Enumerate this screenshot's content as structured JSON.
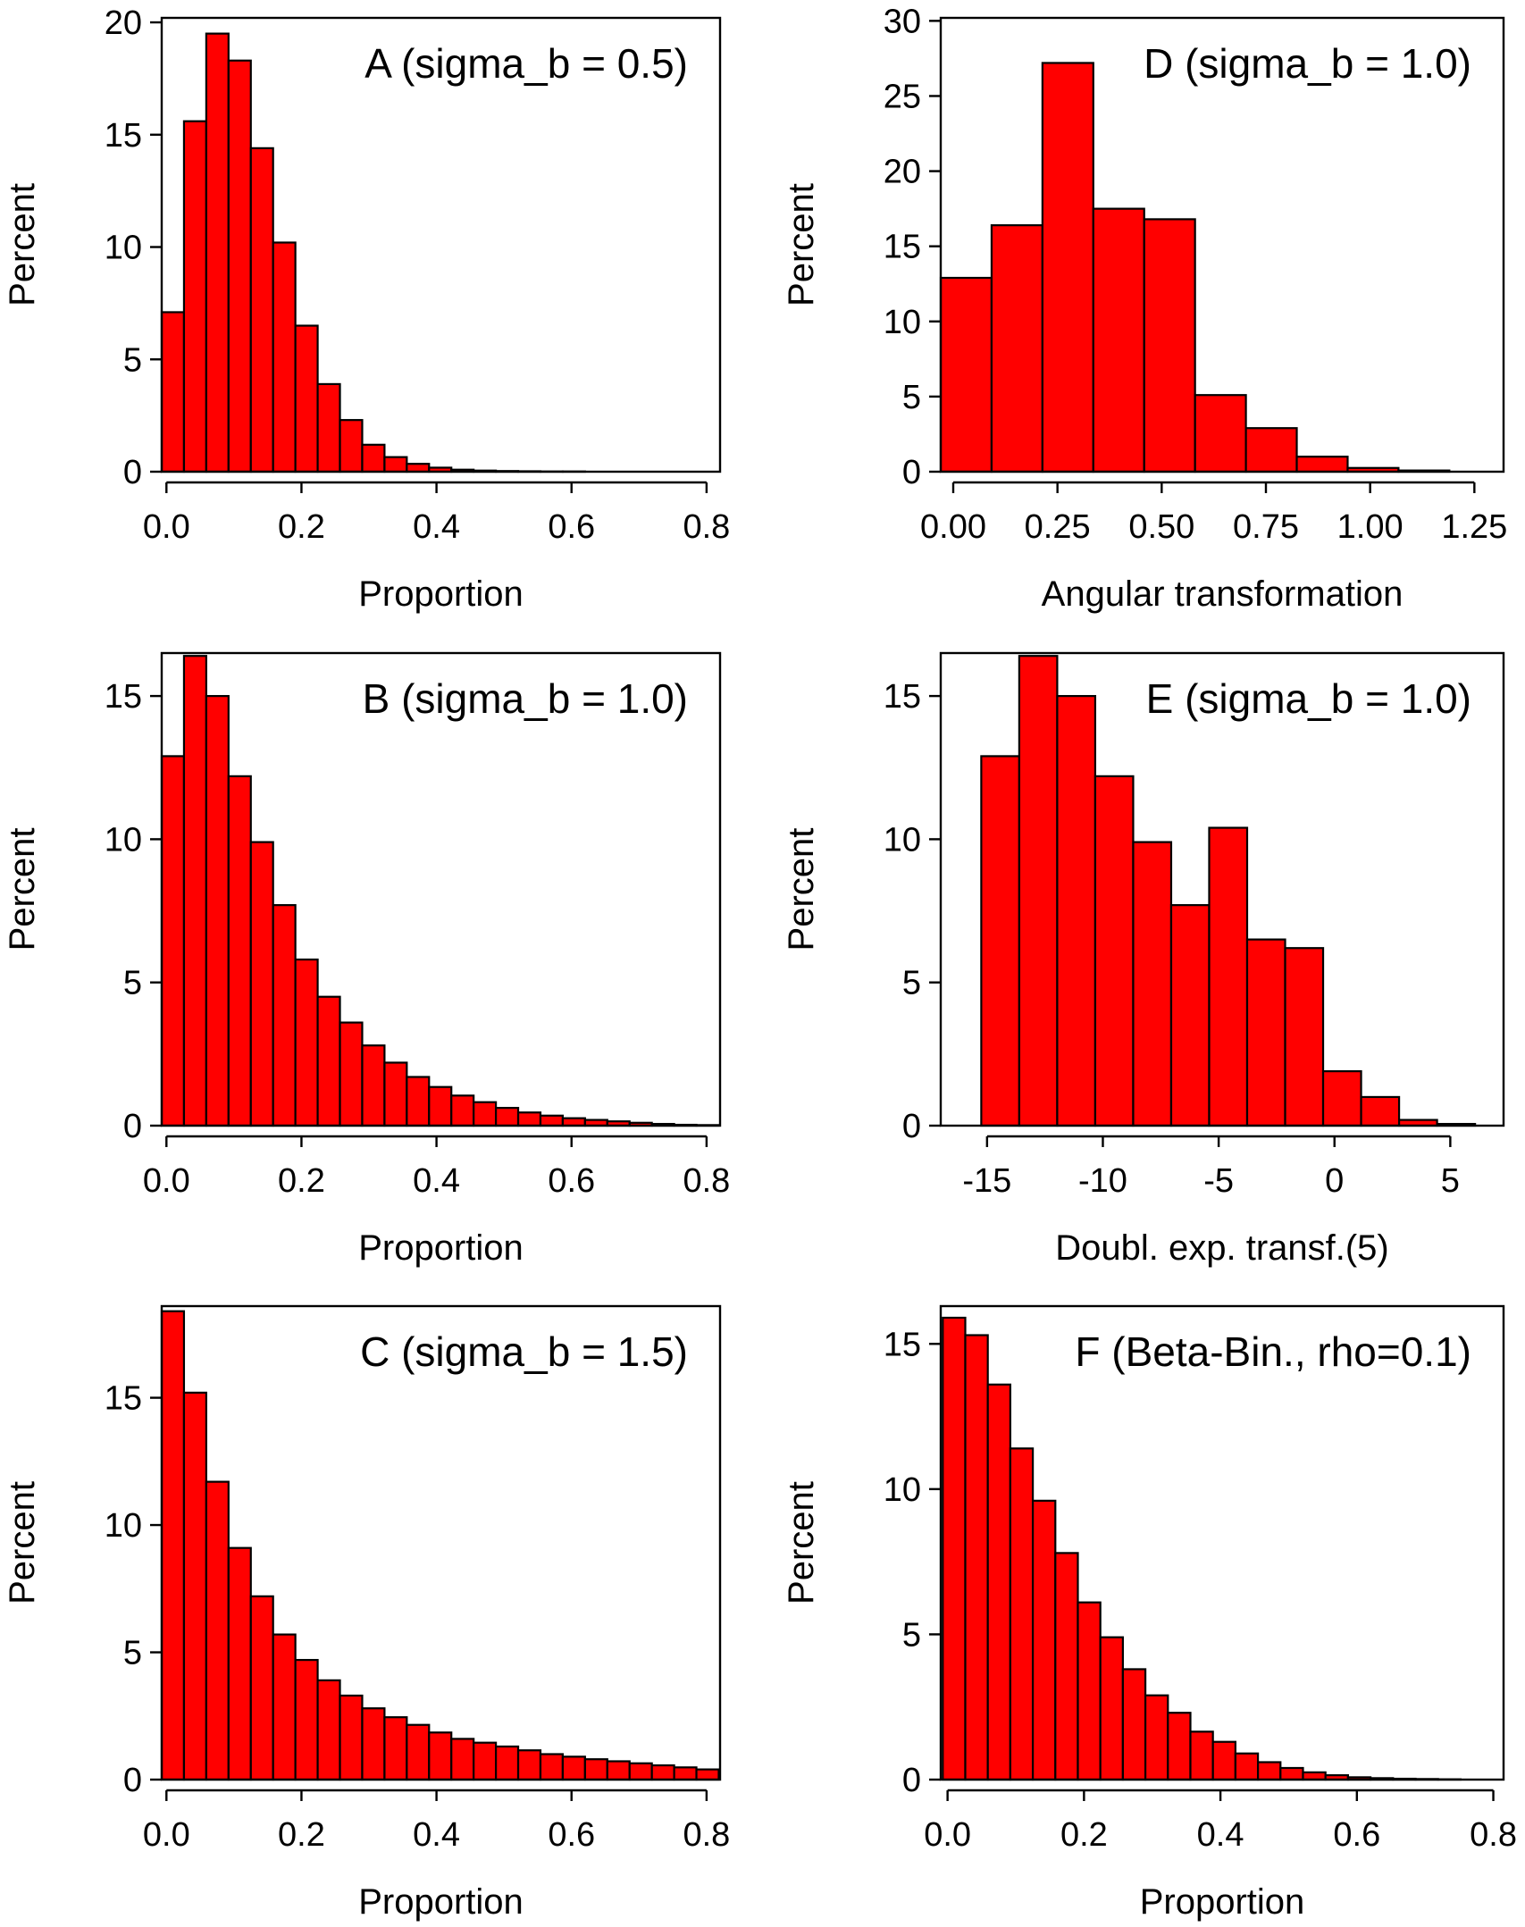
{
  "colors": {
    "bar_fill": "#ff0000",
    "bar_edge": "#000000",
    "frame": "#000000",
    "background": "#ffffff"
  },
  "chart_data": [
    {
      "id": "A",
      "type": "bar",
      "title": "A (sigma_b = 0.5)",
      "xlabel": "Proportion",
      "ylabel": "Percent",
      "xlim": [
        -0.007,
        0.82
      ],
      "ylim": [
        0,
        20.2
      ],
      "xticks": [
        0.0,
        0.2,
        0.4,
        0.6,
        0.8
      ],
      "xtick_labels": [
        "0.0",
        "0.2",
        "0.4",
        "0.6",
        "0.8"
      ],
      "yticks": [
        0,
        5,
        10,
        15,
        20
      ],
      "ytick_labels": [
        "0",
        "5",
        "10",
        "15",
        "20"
      ],
      "bin_start": -0.007,
      "bin_width": 0.033,
      "values": [
        7.1,
        15.6,
        19.5,
        18.3,
        14.4,
        10.2,
        6.5,
        3.9,
        2.3,
        1.2,
        0.65,
        0.35,
        0.18,
        0.09,
        0.05,
        0.03,
        0.02,
        0.01,
        0.01
      ]
    },
    {
      "id": "D",
      "type": "bar",
      "title": "D (sigma_b = 1.0)",
      "xlabel": "Angular transformation",
      "ylabel": "Percent",
      "xlim": [
        -0.03,
        1.32
      ],
      "ylim": [
        0,
        30.2
      ],
      "xticks": [
        0.0,
        0.25,
        0.5,
        0.75,
        1.0,
        1.25
      ],
      "xtick_labels": [
        "0.00",
        "0.25",
        "0.50",
        "0.75",
        "1.00",
        "1.25"
      ],
      "yticks": [
        0,
        5,
        10,
        15,
        20,
        25,
        30
      ],
      "ytick_labels": [
        "0",
        "5",
        "10",
        "15",
        "20",
        "25",
        "30"
      ],
      "bin_start": -0.03,
      "bin_width": 0.122,
      "values": [
        12.9,
        16.4,
        27.2,
        17.5,
        16.8,
        5.1,
        2.9,
        1.0,
        0.25,
        0.08,
        0.0
      ]
    },
    {
      "id": "B",
      "type": "bar",
      "title": "B (sigma_b = 1.0)",
      "xlabel": "Proportion",
      "ylabel": "Percent",
      "xlim": [
        -0.007,
        0.82
      ],
      "ylim": [
        0,
        16.5
      ],
      "xticks": [
        0.0,
        0.2,
        0.4,
        0.6,
        0.8
      ],
      "xtick_labels": [
        "0.0",
        "0.2",
        "0.4",
        "0.6",
        "0.8"
      ],
      "yticks": [
        0,
        5,
        10,
        15
      ],
      "ytick_labels": [
        "0",
        "5",
        "10",
        "15"
      ],
      "bin_start": -0.007,
      "bin_width": 0.033,
      "values": [
        12.9,
        16.4,
        15.0,
        12.2,
        9.9,
        7.7,
        5.8,
        4.5,
        3.6,
        2.8,
        2.2,
        1.7,
        1.35,
        1.05,
        0.82,
        0.62,
        0.46,
        0.35,
        0.26,
        0.2,
        0.15,
        0.1,
        0.06,
        0.03,
        0.02
      ]
    },
    {
      "id": "E",
      "type": "bar",
      "title": "E (sigma_b = 1.0)",
      "xlabel": "Doubl. exp. transf.(5)",
      "ylabel": "Percent",
      "xlim": [
        -17.0,
        7.3
      ],
      "ylim": [
        0,
        16.5
      ],
      "xticks": [
        -15,
        -10,
        -5,
        0,
        5
      ],
      "xtick_labels": [
        "-15",
        "-10",
        "-5",
        "0",
        "5"
      ],
      "yticks": [
        0,
        5,
        10,
        15
      ],
      "ytick_labels": [
        "0",
        "5",
        "10",
        "15"
      ],
      "bin_start": -15.25,
      "bin_width": 1.64,
      "values": [
        12.9,
        16.4,
        15.0,
        12.2,
        9.9,
        7.7,
        10.4,
        6.5,
        6.2,
        1.9,
        1.0,
        0.2,
        0.06,
        0.0
      ]
    },
    {
      "id": "C",
      "type": "bar",
      "title": "C (sigma_b = 1.5)",
      "xlabel": "Proportion",
      "ylabel": "Percent",
      "xlim": [
        -0.007,
        0.82
      ],
      "ylim": [
        0,
        18.6
      ],
      "xticks": [
        0.0,
        0.2,
        0.4,
        0.6,
        0.8
      ],
      "xtick_labels": [
        "0.0",
        "0.2",
        "0.4",
        "0.6",
        "0.8"
      ],
      "yticks": [
        0,
        5,
        10,
        15
      ],
      "ytick_labels": [
        "0",
        "5",
        "10",
        "15"
      ],
      "bin_start": -0.007,
      "bin_width": 0.033,
      "values": [
        18.4,
        15.2,
        11.7,
        9.1,
        7.2,
        5.7,
        4.7,
        3.9,
        3.3,
        2.8,
        2.45,
        2.15,
        1.85,
        1.6,
        1.45,
        1.3,
        1.15,
        1.0,
        0.9,
        0.8,
        0.72,
        0.64,
        0.56,
        0.48,
        0.4
      ]
    },
    {
      "id": "F",
      "type": "bar",
      "title": "F (Beta-Bin., rho=0.1)",
      "xlabel": "Proportion",
      "ylabel": "Percent",
      "xlim": [
        -0.01,
        0.815
      ],
      "ylim": [
        0,
        16.3
      ],
      "xticks": [
        0.0,
        0.2,
        0.4,
        0.6,
        0.8
      ],
      "xtick_labels": [
        "0.0",
        "0.2",
        "0.4",
        "0.6",
        "0.8"
      ],
      "yticks": [
        0,
        5,
        10,
        15
      ],
      "ytick_labels": [
        "0",
        "5",
        "10",
        "15"
      ],
      "bin_start": -0.007,
      "bin_width": 0.033,
      "values": [
        15.9,
        15.3,
        13.6,
        11.4,
        9.6,
        7.8,
        6.1,
        4.9,
        3.8,
        2.9,
        2.3,
        1.65,
        1.3,
        0.9,
        0.6,
        0.4,
        0.25,
        0.15,
        0.08,
        0.05,
        0.03,
        0.02,
        0.01,
        0.0
      ]
    }
  ]
}
